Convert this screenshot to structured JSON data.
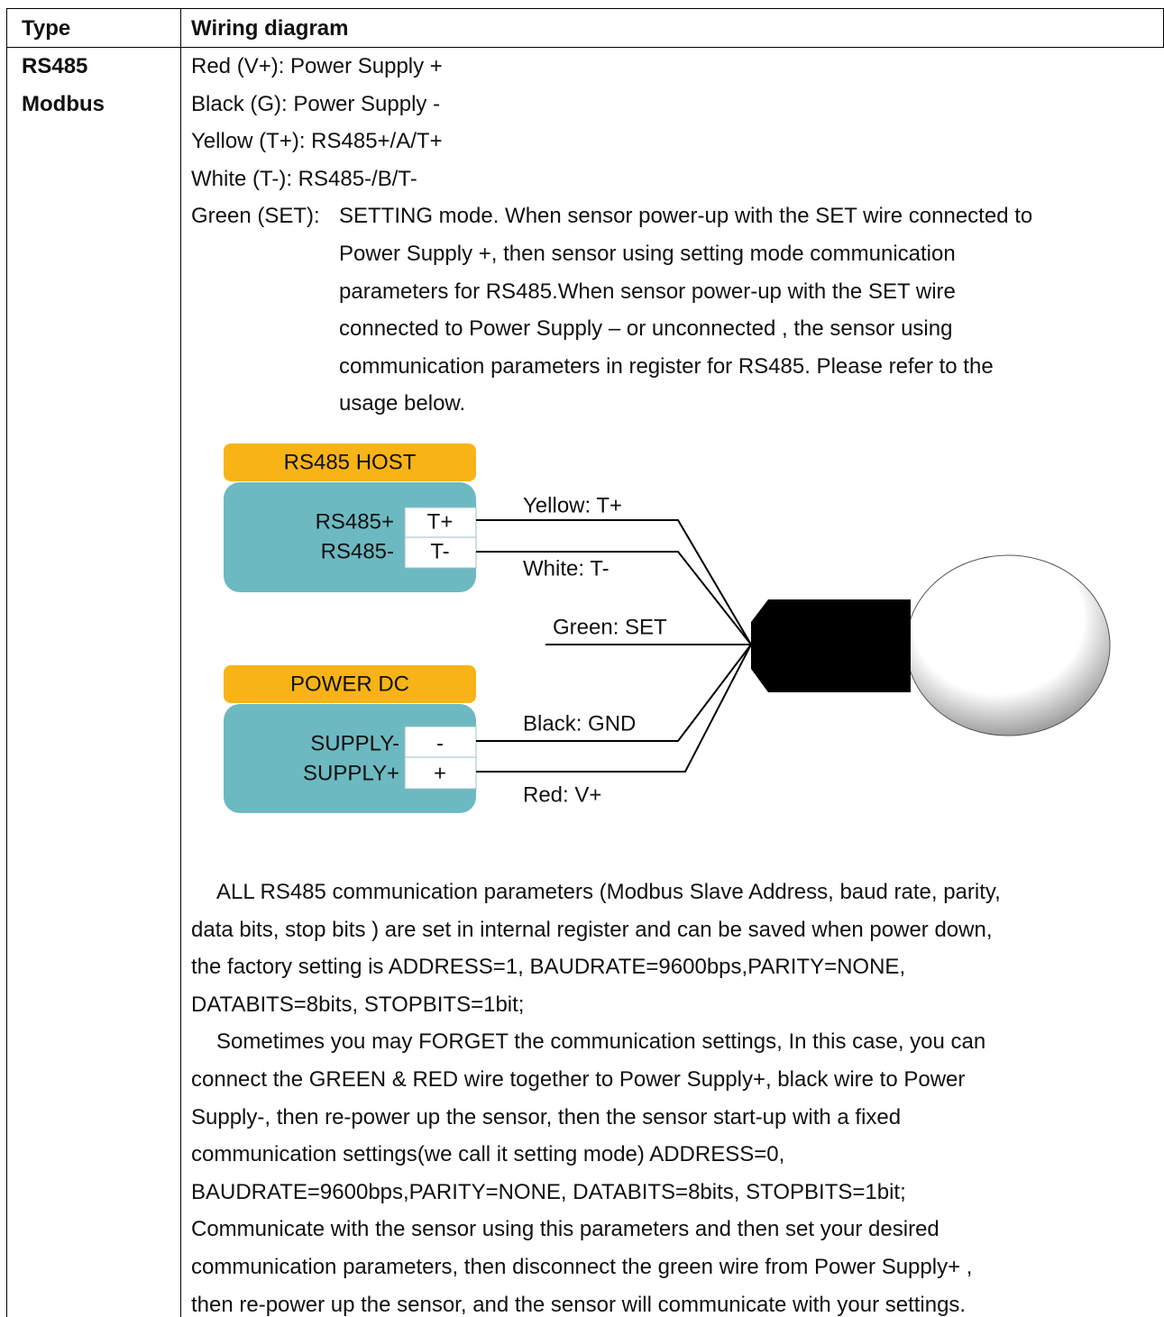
{
  "table": {
    "header": [
      "Type",
      "Wiring diagram"
    ],
    "type_lines": [
      "RS485",
      "Modbus"
    ],
    "wiring": [
      "Red (V+): Power Supply +",
      "Black (G): Power Supply -",
      "Yellow (T+): RS485+/A/T+",
      "White (T-): RS485-/B/T-"
    ],
    "set_label": "Green (SET):",
    "set_lines": [
      "SETTING mode. When sensor power-up with the SET wire connected to",
      "Power Supply +, then sensor using setting mode communication",
      "parameters for RS485.When sensor power-up with the SET wire",
      "connected to Power Supply – or unconnected , the sensor using",
      "communication parameters in register for RS485. Please refer to the",
      "usage below."
    ],
    "diagram": {
      "host_title": "RS485 HOST",
      "host_pins": [
        "RS485+",
        "RS485-"
      ],
      "host_terminals": [
        "T+",
        "T-"
      ],
      "power_title": "POWER DC",
      "power_pins": [
        "SUPPLY-",
        "SUPPLY+"
      ],
      "power_terminals": [
        "-",
        "+"
      ],
      "wire_labels": [
        "Yellow: T+",
        "White: T-",
        "Green: SET",
        "Black: GND",
        "Red: V+"
      ]
    },
    "paragraphs": [
      "ALL RS485 communication parameters (Modbus Slave Address, baud rate, parity,",
      "data bits, stop bits ) are set in internal register and can be saved when power down,",
      "the factory setting is ADDRESS=1, BAUDRATE=9600bps,PARITY=NONE,",
      "DATABITS=8bits, STOPBITS=1bit;",
      "Sometimes you may FORGET the communication settings, In this case, you can",
      "connect the GREEN & RED wire together to Power Supply+, black wire to Power",
      "Supply-, then re-power up the sensor, then the sensor start-up with a fixed",
      "communication settings(we call it setting mode) ADDRESS=0,",
      "BAUDRATE=9600bps,PARITY=NONE, DATABITS=8bits, STOPBITS=1bit;",
      "Communicate with the sensor using this parameters and then set your desired",
      "communication parameters, then disconnect the green wire from Power Supply+ ,",
      "then re-power up the sensor, and the sensor will communicate with your settings."
    ]
  }
}
